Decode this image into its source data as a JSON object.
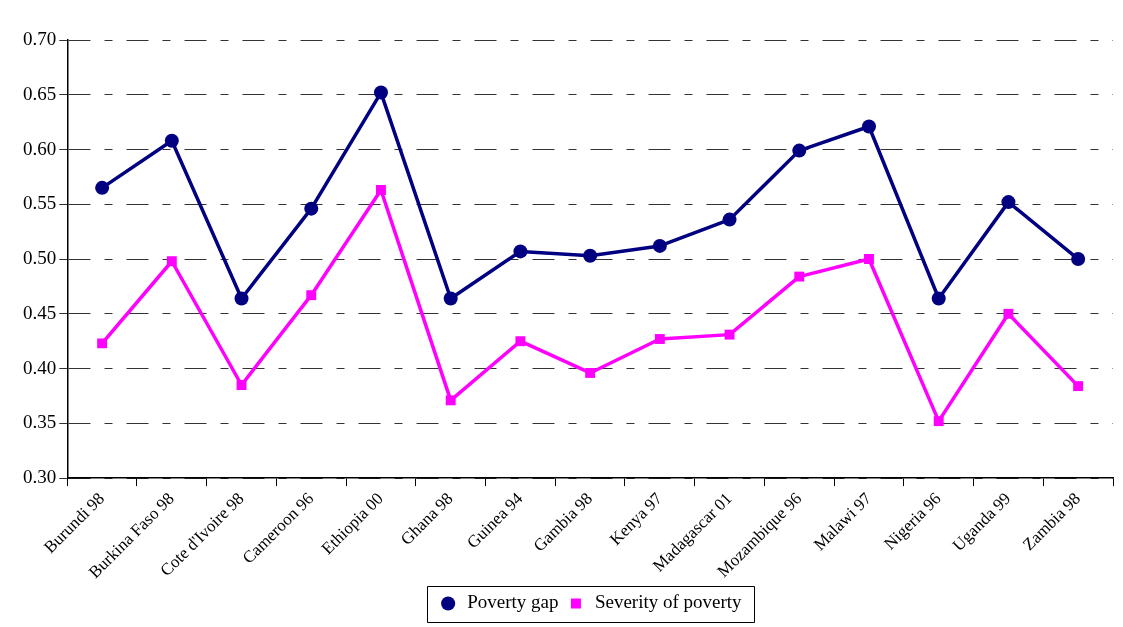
{
  "chart_data": {
    "type": "line",
    "categories": [
      "Burundi 98",
      "Burkina Faso 98",
      "Cote d'Ivoire 98",
      "Cameroon 96",
      "Ethiopia 00",
      "Ghana 98",
      "Guinea 94",
      "Gambia 98",
      "Kenya 97",
      "Madagascar 01",
      "Mozambique 96",
      "Malawi 97",
      "Nigeria 96",
      "Uganda 99",
      "Zambia 98"
    ],
    "series": [
      {
        "name": "Poverty gap",
        "color": "#000080",
        "marker": "circle",
        "values": [
          0.565,
          0.608,
          0.464,
          0.546,
          0.652,
          0.464,
          0.507,
          0.503,
          0.512,
          0.536,
          0.599,
          0.621,
          0.464,
          0.552,
          0.5
        ]
      },
      {
        "name": "Severity of poverty",
        "color": "#ff00ff",
        "marker": "square",
        "values": [
          0.423,
          0.498,
          0.385,
          0.467,
          0.563,
          0.371,
          0.425,
          0.396,
          0.427,
          0.431,
          0.484,
          0.5,
          0.352,
          0.45,
          0.384
        ]
      }
    ],
    "ylim": [
      0.3,
      0.7
    ],
    "yticks": [
      {
        "value": 0.3,
        "label": "0.30"
      },
      {
        "value": 0.35,
        "label": "0.35"
      },
      {
        "value": 0.4,
        "label": "0.40"
      },
      {
        "value": 0.45,
        "label": "0.45"
      },
      {
        "value": 0.5,
        "label": "0.50"
      },
      {
        "value": 0.55,
        "label": "0.55"
      },
      {
        "value": 0.6,
        "label": "0.60"
      },
      {
        "value": 0.65,
        "label": "0.65"
      },
      {
        "value": 0.7,
        "label": "0.70"
      }
    ],
    "grid": "y",
    "legend": "bottom",
    "line_style": "solid"
  }
}
